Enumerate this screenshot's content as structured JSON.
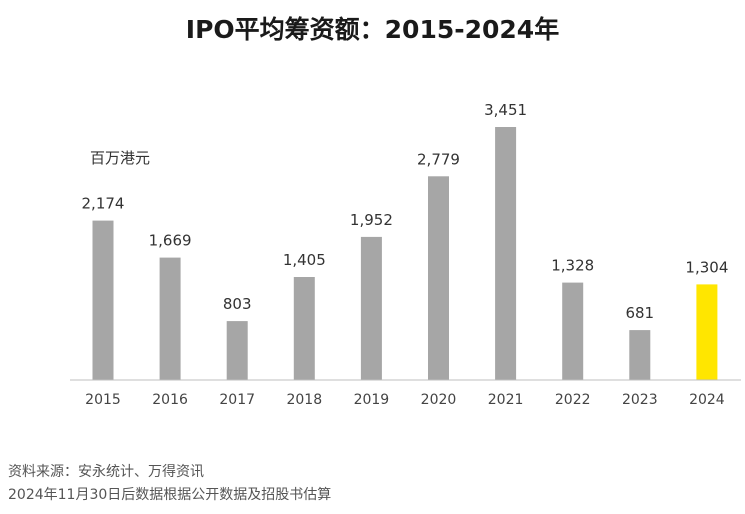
{
  "chart_data": {
    "type": "bar",
    "title": "IPO平均筹资额：2015-2024年",
    "unit_label": "百万港元",
    "categories": [
      "2015",
      "2016",
      "2017",
      "2018",
      "2019",
      "2020",
      "2021",
      "2022",
      "2023",
      "2024"
    ],
    "values": [
      2174,
      1669,
      803,
      1405,
      1952,
      2779,
      3451,
      1328,
      681,
      1304
    ],
    "value_labels": [
      "2,174",
      "1,669",
      "803",
      "1,405",
      "1,952",
      "2,779",
      "3,451",
      "1,328",
      "681",
      "1,304"
    ],
    "ylim": [
      0,
      3451
    ],
    "grid": false,
    "colors": {
      "default_bar": "#a6a6a6",
      "highlight_bar": "#ffe600",
      "axis": "#bfbfbf"
    },
    "highlight_category": "2024"
  },
  "footer": {
    "source": "资料来源：安永统计、万得资讯",
    "note": "2024年11月30日后数据根据公开数据及招股书估算"
  }
}
